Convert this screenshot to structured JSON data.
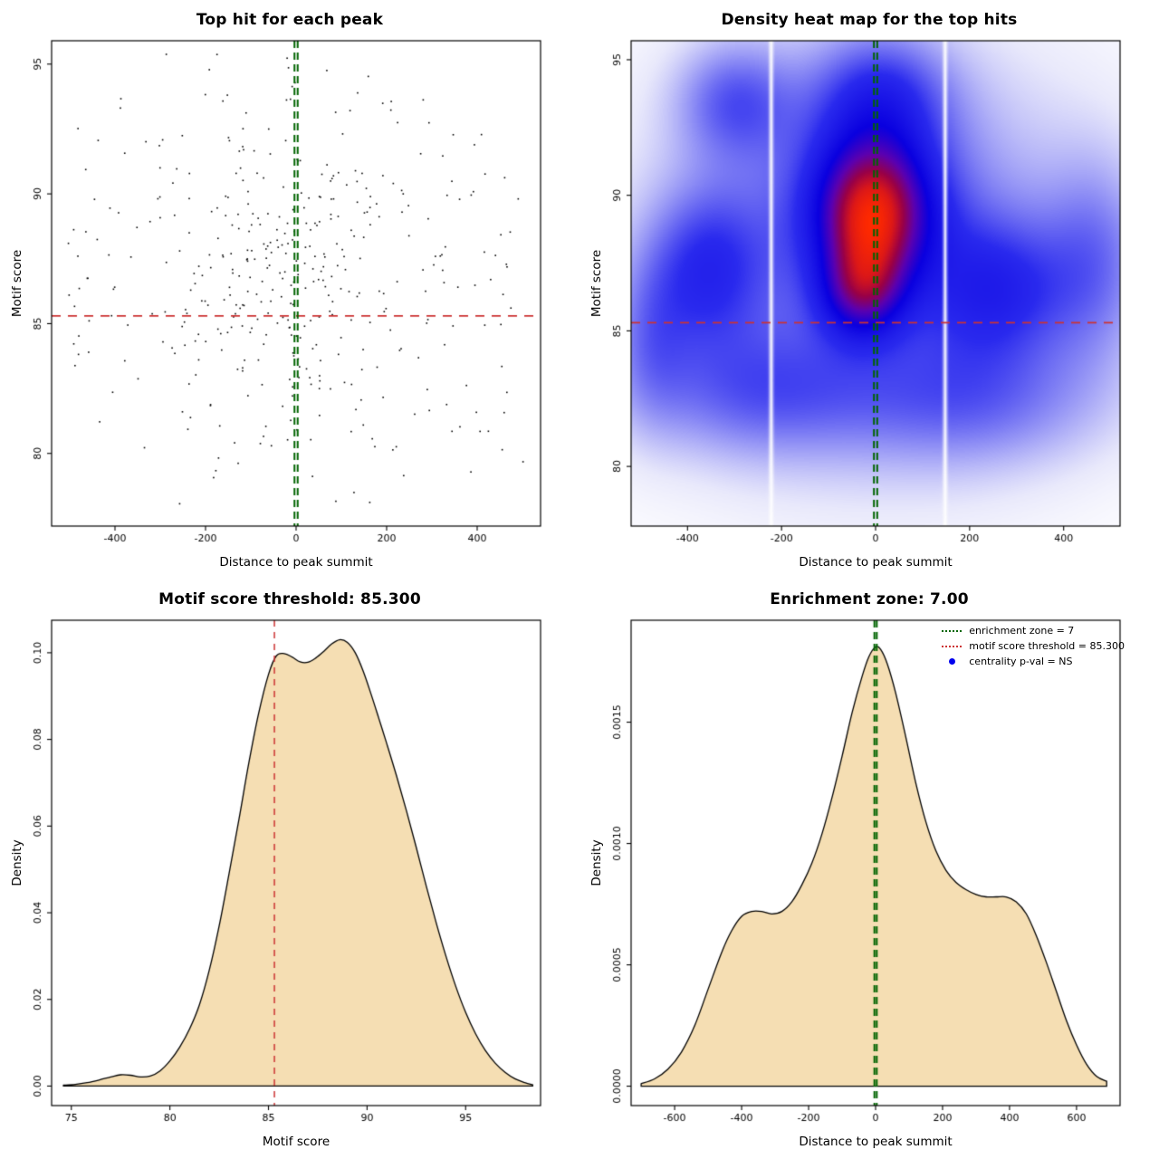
{
  "colors": {
    "background": "#ffffff",
    "frame": "#000000",
    "point": "#000000",
    "threshold_red": "#cc3333",
    "zone_green": "#006400",
    "legend_blue": "#0000ee",
    "density_fill": "#f5deb3",
    "density_stroke": "#000000"
  },
  "chart_data": [
    {
      "type": "scatter",
      "title": "Top hit for each peak",
      "xlabel": "Distance to peak summit",
      "ylabel": "Motif score",
      "xlim": [
        -540,
        540
      ],
      "ylim": [
        77.2,
        95.9
      ],
      "xticks": [
        {
          "v": -400,
          "l": "-400"
        },
        {
          "v": -200,
          "l": "-200"
        },
        {
          "v": 0,
          "l": "0"
        },
        {
          "v": 200,
          "l": "200"
        },
        {
          "v": 400,
          "l": "400"
        }
      ],
      "yticks": [
        {
          "v": 80,
          "l": "80"
        },
        {
          "v": 85,
          "l": "85"
        },
        {
          "v": 90,
          "l": "90"
        },
        {
          "v": 95,
          "l": "95"
        }
      ],
      "points_spec": {
        "n": 430,
        "seed": 20240117,
        "x_range": [
          -505,
          505
        ],
        "y_range": [
          77.6,
          95.6
        ],
        "uniform_frac": 0.55
      },
      "threshold_line_y": 85.3,
      "zone_lines_x": [
        -3.5,
        3.5
      ],
      "grid": false
    },
    {
      "type": "heatmap",
      "title": "Density heat map for the top hits",
      "xlabel": "Distance to peak summit",
      "ylabel": "Motif score",
      "xlim": [
        -520,
        520
      ],
      "ylim": [
        77.8,
        95.7
      ],
      "xticks": [
        {
          "v": -400,
          "l": "-400"
        },
        {
          "v": -200,
          "l": "-200"
        },
        {
          "v": 0,
          "l": "0"
        },
        {
          "v": 200,
          "l": "200"
        },
        {
          "v": 400,
          "l": "400"
        }
      ],
      "yticks": [
        {
          "v": 80,
          "l": "80"
        },
        {
          "v": 85,
          "l": "85"
        },
        {
          "v": 90,
          "l": "90"
        },
        {
          "v": 95,
          "l": "95"
        }
      ],
      "kernels": [
        [
          -5,
          89.5,
          78,
          1.75,
          1.0
        ],
        [
          -5,
          89.8,
          130,
          2.6,
          0.35
        ],
        [
          -30,
          86.4,
          60,
          1.15,
          0.62
        ],
        [
          -15,
          88.0,
          55,
          1.6,
          0.3
        ],
        [
          0,
          87.8,
          320,
          5.2,
          0.42
        ],
        [
          -360,
          87.3,
          85,
          2.1,
          0.45
        ],
        [
          265,
          86.5,
          105,
          1.8,
          0.42
        ],
        [
          -260,
          82.7,
          170,
          1.7,
          0.33
        ],
        [
          210,
          82.4,
          190,
          1.7,
          0.3
        ],
        [
          -300,
          93.5,
          85,
          1.5,
          0.38
        ],
        [
          10,
          93.8,
          100,
          1.6,
          0.4
        ],
        [
          470,
          87.6,
          80,
          2.6,
          0.3
        ],
        [
          -480,
          84.8,
          60,
          2.2,
          0.26
        ]
      ],
      "white_stripes": [
        -222,
        148
      ],
      "stripe_sigma": 3,
      "gamma": 0.92,
      "colormap": [
        [
          0,
          "#ffffff"
        ],
        [
          0.06,
          "#e9e9fb"
        ],
        [
          0.18,
          "#9a9af6"
        ],
        [
          0.35,
          "#2a2aee"
        ],
        [
          0.52,
          "#0a00e0"
        ],
        [
          0.66,
          "#5c00b0"
        ],
        [
          0.78,
          "#980048"
        ],
        [
          0.89,
          "#dc1818"
        ],
        [
          1,
          "#ff2a00"
        ]
      ],
      "threshold_line_y": 85.3,
      "zone_lines_x": [
        -3.5,
        3.5
      ]
    },
    {
      "type": "density",
      "title": "Motif score threshold: 85.300",
      "xlabel": "Motif score",
      "ylabel": "Density",
      "xlim": [
        74,
        98.8
      ],
      "ylim": [
        -0.0045,
        0.1075
      ],
      "xticks": [
        {
          "v": 75,
          "l": "75"
        },
        {
          "v": 80,
          "l": "80"
        },
        {
          "v": 85,
          "l": "85"
        },
        {
          "v": 90,
          "l": "90"
        },
        {
          "v": 95,
          "l": "95"
        }
      ],
      "yticks": [
        {
          "v": 0,
          "l": "0.00"
        },
        {
          "v": 0.02,
          "l": "0.02"
        },
        {
          "v": 0.04,
          "l": "0.04"
        },
        {
          "v": 0.06,
          "l": "0.06"
        },
        {
          "v": 0.08,
          "l": "0.08"
        },
        {
          "v": 0.1,
          "l": "0.10"
        }
      ],
      "curve": [
        [
          74.6,
          0.0002
        ],
        [
          75.2,
          0.0004
        ],
        [
          75.8,
          0.0008
        ],
        [
          76.4,
          0.0014
        ],
        [
          77.0,
          0.0021
        ],
        [
          77.5,
          0.0026
        ],
        [
          78.0,
          0.0025
        ],
        [
          78.5,
          0.0021
        ],
        [
          79.0,
          0.0023
        ],
        [
          79.5,
          0.0035
        ],
        [
          80.0,
          0.0058
        ],
        [
          80.5,
          0.009
        ],
        [
          81.0,
          0.0132
        ],
        [
          81.5,
          0.0188
        ],
        [
          82.0,
          0.0268
        ],
        [
          82.5,
          0.037
        ],
        [
          83.0,
          0.049
        ],
        [
          83.5,
          0.0615
        ],
        [
          84.0,
          0.0745
        ],
        [
          84.5,
          0.086
        ],
        [
          85.0,
          0.095
        ],
        [
          85.4,
          0.0993
        ],
        [
          85.8,
          0.0998
        ],
        [
          86.2,
          0.099
        ],
        [
          86.6,
          0.0979
        ],
        [
          87.0,
          0.0978
        ],
        [
          87.4,
          0.0988
        ],
        [
          87.8,
          0.1003
        ],
        [
          88.2,
          0.102
        ],
        [
          88.6,
          0.103
        ],
        [
          89.0,
          0.1024
        ],
        [
          89.4,
          0.1
        ],
        [
          89.8,
          0.0958
        ],
        [
          90.2,
          0.0905
        ],
        [
          90.6,
          0.0848
        ],
        [
          91.0,
          0.079
        ],
        [
          91.5,
          0.0715
        ],
        [
          92.0,
          0.0635
        ],
        [
          92.5,
          0.055
        ],
        [
          93.0,
          0.0462
        ],
        [
          93.5,
          0.0378
        ],
        [
          94.0,
          0.03
        ],
        [
          94.5,
          0.023
        ],
        [
          95.0,
          0.017
        ],
        [
          95.5,
          0.0121
        ],
        [
          96.0,
          0.0082
        ],
        [
          96.5,
          0.0053
        ],
        [
          97.0,
          0.0032
        ],
        [
          97.5,
          0.0017
        ],
        [
          98.0,
          0.0008
        ],
        [
          98.4,
          0.0003
        ]
      ],
      "vline_red": 85.3
    },
    {
      "type": "density",
      "title": "Enrichment zone: 7.00",
      "xlabel": "Distance to peak summit",
      "ylabel": "Density",
      "xlim": [
        -730,
        730
      ],
      "ylim": [
        -8e-05,
        0.00192
      ],
      "xticks": [
        {
          "v": -600,
          "l": "-600"
        },
        {
          "v": -400,
          "l": "-400"
        },
        {
          "v": -200,
          "l": "-200"
        },
        {
          "v": 0,
          "l": "0"
        },
        {
          "v": 200,
          "l": "200"
        },
        {
          "v": 400,
          "l": "400"
        },
        {
          "v": 600,
          "l": "600"
        }
      ],
      "yticks": [
        {
          "v": 0,
          "l": "0.0000"
        },
        {
          "v": 0.0005,
          "l": "0.0005"
        },
        {
          "v": 0.001,
          "l": "0.0010"
        },
        {
          "v": 0.0015,
          "l": "0.0015"
        }
      ],
      "curve": [
        [
          -700,
          1e-05
        ],
        [
          -660,
          3e-05
        ],
        [
          -620,
          7e-05
        ],
        [
          -580,
          0.00014
        ],
        [
          -540,
          0.00025
        ],
        [
          -500,
          0.0004
        ],
        [
          -460,
          0.00055
        ],
        [
          -430,
          0.00064
        ],
        [
          -400,
          0.0007
        ],
        [
          -370,
          0.00072
        ],
        [
          -340,
          0.00072
        ],
        [
          -310,
          0.00071
        ],
        [
          -280,
          0.00072
        ],
        [
          -250,
          0.00076
        ],
        [
          -220,
          0.00083
        ],
        [
          -190,
          0.00092
        ],
        [
          -160,
          0.00104
        ],
        [
          -130,
          0.00119
        ],
        [
          -100,
          0.00136
        ],
        [
          -70,
          0.00154
        ],
        [
          -40,
          0.00169
        ],
        [
          -20,
          0.00177
        ],
        [
          0,
          0.00181
        ],
        [
          15,
          0.0018
        ],
        [
          35,
          0.00174
        ],
        [
          60,
          0.00162
        ],
        [
          90,
          0.00144
        ],
        [
          120,
          0.00125
        ],
        [
          150,
          0.00109
        ],
        [
          180,
          0.00097
        ],
        [
          210,
          0.00089
        ],
        [
          240,
          0.00084
        ],
        [
          270,
          0.00081
        ],
        [
          300,
          0.00079
        ],
        [
          330,
          0.00078
        ],
        [
          360,
          0.00078
        ],
        [
          390,
          0.00078
        ],
        [
          420,
          0.00076
        ],
        [
          450,
          0.00071
        ],
        [
          480,
          0.00062
        ],
        [
          510,
          0.00051
        ],
        [
          540,
          0.00039
        ],
        [
          570,
          0.00027
        ],
        [
          600,
          0.00017
        ],
        [
          630,
          9e-05
        ],
        [
          660,
          4e-05
        ],
        [
          690,
          2e-05
        ]
      ],
      "vlines_green": [
        -3.5,
        3.5
      ],
      "legend": [
        {
          "type": "line",
          "color": "#006400",
          "label": "enrichment zone = 7"
        },
        {
          "type": "line",
          "color": "#cc3333",
          "label": "motif score threshold = 85.300"
        },
        {
          "type": "dot",
          "color": "#0000ee",
          "label": "centrality p-val = NS"
        }
      ]
    }
  ]
}
